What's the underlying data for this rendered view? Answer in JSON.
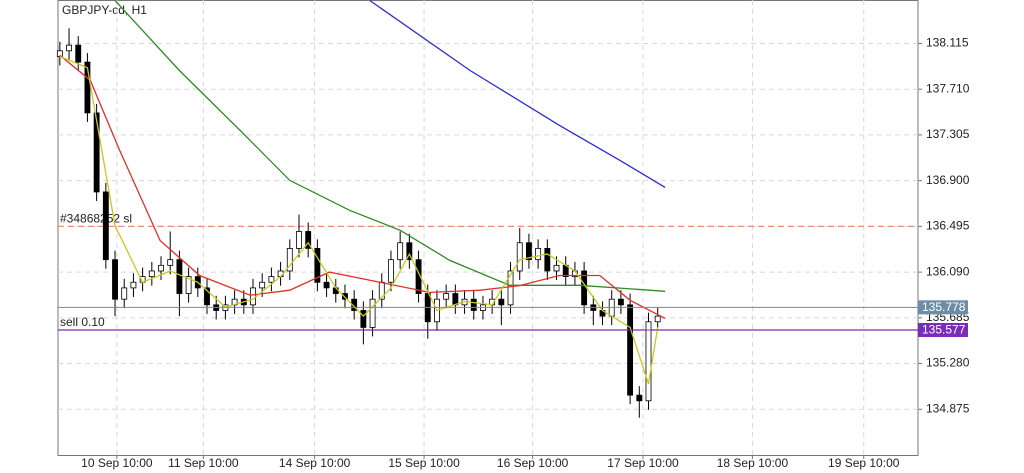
{
  "chart_data": {
    "type": "candlestick",
    "title": "GBPJPY-cd, H1",
    "ylim": [
      134.47,
      138.5
    ],
    "xlim": [
      -0.2,
      93.3
    ],
    "grid": true,
    "yticks": [
      138.115,
      {
        "value": 137.71,
        "label": "137.710"
      },
      137.305,
      {
        "value": 136.9,
        "label": "136.900"
      },
      136.495,
      {
        "value": 136.09,
        "label": "136.090"
      },
      135.685,
      {
        "value": 135.28,
        "label": "135.280"
      },
      134.875
    ],
    "xticks": [
      {
        "value": 6.2,
        "label": "10 Sep 10:00"
      },
      {
        "value": 15.6,
        "label": "11 Sep 10:00"
      },
      {
        "value": 27.7,
        "label": "14 Sep 10:00"
      },
      {
        "value": 39.6,
        "label": "15 Sep 10:00"
      },
      {
        "value": 51.4,
        "label": "16 Sep 10:00"
      },
      {
        "value": 63.4,
        "label": "17 Sep 10:00"
      },
      {
        "value": 75.3,
        "label": "18 Sep 10:00"
      },
      {
        "value": 87.4,
        "label": "19 Sep 10:00"
      }
    ],
    "candles": {
      "x": [
        0,
        1,
        2,
        3,
        4,
        5,
        6,
        7,
        8,
        9,
        10,
        11,
        12,
        13,
        14,
        15,
        16,
        17,
        18,
        19,
        20,
        21,
        22,
        23,
        24,
        25,
        26,
        27,
        28,
        29,
        30,
        31,
        32,
        33,
        34,
        35,
        36,
        37,
        38,
        39,
        40,
        41,
        42,
        43,
        44,
        45,
        46,
        47,
        48,
        49,
        50,
        51,
        52,
        53,
        54,
        55,
        56,
        57,
        58,
        59,
        60,
        61,
        62,
        63,
        64,
        65
      ],
      "open": [
        138.0,
        138.05,
        138.1,
        137.95,
        137.5,
        136.8,
        136.2,
        135.85,
        135.95,
        136.0,
        136.05,
        136.1,
        136.15,
        136.2,
        135.9,
        136.05,
        135.95,
        135.8,
        135.75,
        135.8,
        135.85,
        135.8,
        135.95,
        136.0,
        136.05,
        136.1,
        136.3,
        136.45,
        136.3,
        136.0,
        135.95,
        135.9,
        135.85,
        135.75,
        135.6,
        135.85,
        136.0,
        136.2,
        136.35,
        136.2,
        135.9,
        135.65,
        135.85,
        135.9,
        135.8,
        135.85,
        135.75,
        135.8,
        135.85,
        135.8,
        136.1,
        136.35,
        136.2,
        136.3,
        136.1,
        136.15,
        136.05,
        136.1,
        135.8,
        135.75,
        135.7,
        135.85,
        135.8,
        135.0,
        134.95,
        135.65
      ],
      "high": [
        138.13,
        138.25,
        138.18,
        138.03,
        137.58,
        136.88,
        136.28,
        136.03,
        136.08,
        136.13,
        136.18,
        136.23,
        136.45,
        136.28,
        136.13,
        136.13,
        136.03,
        135.88,
        135.88,
        135.93,
        135.93,
        136.03,
        136.08,
        136.13,
        136.18,
        136.38,
        136.6,
        136.53,
        136.38,
        136.08,
        136.03,
        135.98,
        135.93,
        135.83,
        135.93,
        136.08,
        136.28,
        136.45,
        136.43,
        136.28,
        135.98,
        135.93,
        135.98,
        135.98,
        135.93,
        135.93,
        135.88,
        135.93,
        135.93,
        136.18,
        136.48,
        136.43,
        136.38,
        136.38,
        136.23,
        136.23,
        136.18,
        136.18,
        135.88,
        135.83,
        135.93,
        135.93,
        135.9,
        135.08,
        135.73,
        135.78
      ],
      "low": [
        137.92,
        137.97,
        137.87,
        137.42,
        136.72,
        136.12,
        135.7,
        135.77,
        135.87,
        135.92,
        135.97,
        136.02,
        136.07,
        135.7,
        135.82,
        135.87,
        135.72,
        135.67,
        135.67,
        135.72,
        135.72,
        135.72,
        135.87,
        135.92,
        135.97,
        136.02,
        136.22,
        136.22,
        135.92,
        135.87,
        135.82,
        135.77,
        135.67,
        135.45,
        135.52,
        135.77,
        135.92,
        136.12,
        136.12,
        135.82,
        135.5,
        135.57,
        135.77,
        135.72,
        135.72,
        135.67,
        135.67,
        135.72,
        135.62,
        135.72,
        136.02,
        136.12,
        136.12,
        136.02,
        136.02,
        135.97,
        135.97,
        135.72,
        135.62,
        135.62,
        135.62,
        135.72,
        134.92,
        134.8,
        134.87,
        135.6
      ],
      "close": [
        138.05,
        138.1,
        137.95,
        137.5,
        136.8,
        136.2,
        135.85,
        135.95,
        136.0,
        136.05,
        136.1,
        136.15,
        136.2,
        135.9,
        136.05,
        135.95,
        135.8,
        135.75,
        135.8,
        135.85,
        135.8,
        135.95,
        136.0,
        136.05,
        136.1,
        136.3,
        136.45,
        136.3,
        136.0,
        135.95,
        135.9,
        135.85,
        135.75,
        135.6,
        135.85,
        136.0,
        136.2,
        136.35,
        136.2,
        135.9,
        135.65,
        135.85,
        135.9,
        135.8,
        135.85,
        135.75,
        135.8,
        135.85,
        135.8,
        136.1,
        136.35,
        136.2,
        136.3,
        136.1,
        136.15,
        136.05,
        136.1,
        135.8,
        135.75,
        135.7,
        135.85,
        135.8,
        135.0,
        134.95,
        135.65,
        135.7
      ]
    },
    "series": [
      {
        "color": "#2b2bd6",
        "x": [
          33.7,
          44.6,
          54.3,
          60.9,
          65.8
        ],
        "values": [
          138.496,
          137.876,
          137.39,
          137.079,
          136.84
        ]
      },
      {
        "color": "#2e8b22",
        "x": [
          6,
          13,
          19.6,
          25,
          31.5,
          37,
          42.4,
          48.9,
          56.5,
          65.8
        ],
        "values": [
          138.496,
          137.876,
          137.345,
          136.902,
          136.637,
          136.46,
          136.194,
          135.973,
          135.973,
          135.92
        ]
      },
      {
        "color": "#e0302a",
        "x": [
          0,
          3.3,
          6.5,
          10.9,
          15.2,
          20.7,
          25,
          29.3,
          34.8,
          40.2,
          45.7,
          50,
          54.3,
          58.7,
          62,
          65.8
        ],
        "values": [
          138.01,
          137.79,
          137.17,
          136.37,
          136.06,
          135.885,
          135.93,
          136.09,
          136.0,
          135.91,
          135.93,
          135.97,
          136.06,
          136.06,
          135.84,
          135.68
        ]
      },
      {
        "color": "#c8c820",
        "x": [
          0,
          3,
          6,
          9,
          12,
          15,
          18,
          21,
          24,
          27,
          30,
          33,
          36,
          38,
          41,
          44,
          47,
          50,
          53,
          56,
          59,
          62,
          64,
          65
        ],
        "values": [
          138.0,
          137.9,
          136.5,
          136.0,
          136.1,
          136.0,
          135.78,
          135.85,
          136.05,
          136.35,
          135.95,
          135.7,
          135.95,
          136.25,
          135.75,
          135.83,
          135.8,
          136.2,
          136.25,
          136.1,
          135.75,
          135.6,
          135.1,
          135.6
        ]
      }
    ],
    "levels": [
      {
        "label": "#34868252 sl",
        "value": 136.495,
        "color": "#e8907a",
        "dash": true
      },
      {
        "label": "sell 0.10",
        "value": 135.577,
        "color": "#7a2bb8",
        "dash": false
      }
    ],
    "price_tags": [
      {
        "value": 135.778,
        "color": "#6f8ca6"
      },
      {
        "value": 135.577,
        "color": "#7a2bb8"
      }
    ]
  }
}
